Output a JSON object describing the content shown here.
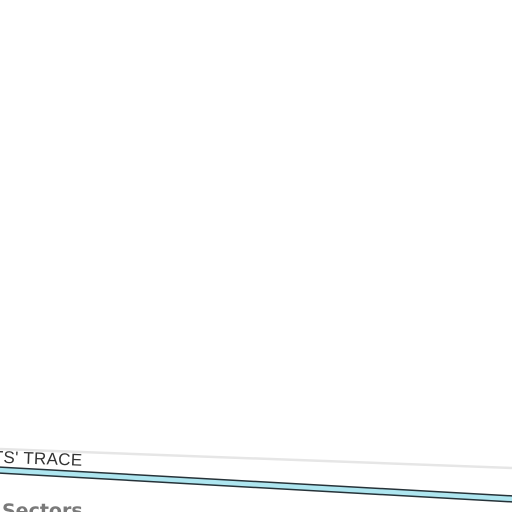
{
  "map": {
    "street_name": "HTS' TRACE",
    "area_name": "Sectors",
    "colors": {
      "background": "#ffffff",
      "minor_road": "#e6e6e6",
      "waterway_fill": "#aee6f0",
      "waterway_casing": "#263238",
      "street_label": "#333333",
      "area_label": "#7a7a7a"
    }
  }
}
